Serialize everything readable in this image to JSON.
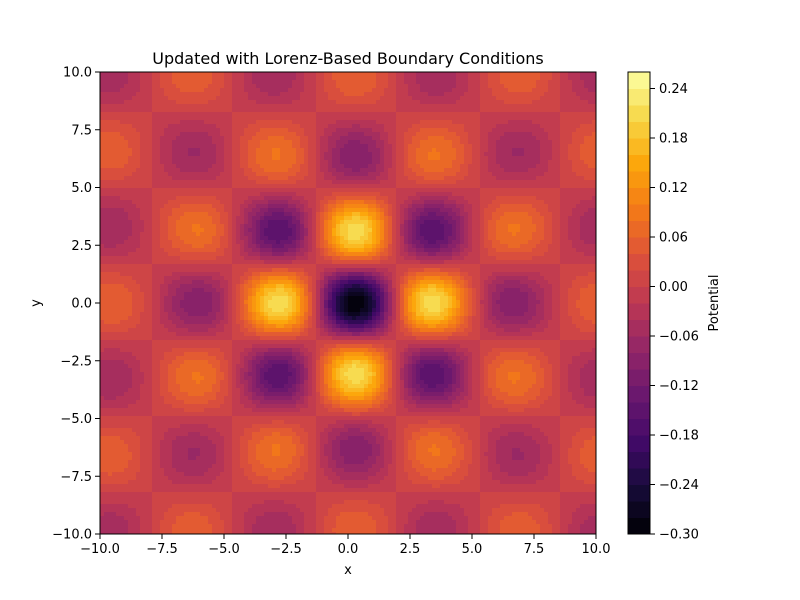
{
  "chart_data": {
    "type": "heatmap",
    "title": "Updated with Lorenz-Based Boundary Conditions",
    "xlabel": "x",
    "ylabel": "y",
    "xlim": [
      -10,
      10
    ],
    "ylim": [
      -10,
      10
    ],
    "x_ticks": [
      "−10.0",
      "−7.5",
      "−5.0",
      "−2.5",
      "0.0",
      "2.5",
      "5.0",
      "7.5",
      "10.0"
    ],
    "y_ticks": [
      "−10.0",
      "−7.5",
      "−5.0",
      "−2.5",
      "0.0",
      "2.5",
      "5.0",
      "7.5",
      "10.0"
    ],
    "x_tick_values": [
      -10,
      -7.5,
      -5,
      -2.5,
      0,
      2.5,
      5,
      7.5,
      10
    ],
    "y_tick_values": [
      -10,
      -7.5,
      -5,
      -2.5,
      0,
      2.5,
      5,
      7.5,
      10
    ],
    "colorbar": {
      "label": "Potential",
      "colormap": "inferno",
      "range": [
        -0.3,
        0.26
      ],
      "ticks": [
        "−0.30",
        "−0.24",
        "−0.18",
        "−0.12",
        "−0.06",
        "0.00",
        "0.06",
        "0.12",
        "0.18",
        "0.24"
      ],
      "tick_values": [
        -0.3,
        -0.24,
        -0.18,
        -0.12,
        -0.06,
        0.0,
        0.06,
        0.12,
        0.18,
        0.24
      ],
      "level_step": 0.02
    },
    "field_description_values": {
      "center_x": 0.3,
      "center_y": 0.0,
      "spacing": 3.3,
      "minimum_value": -0.3,
      "maximum_value": 0.26
    },
    "grid": false
  }
}
